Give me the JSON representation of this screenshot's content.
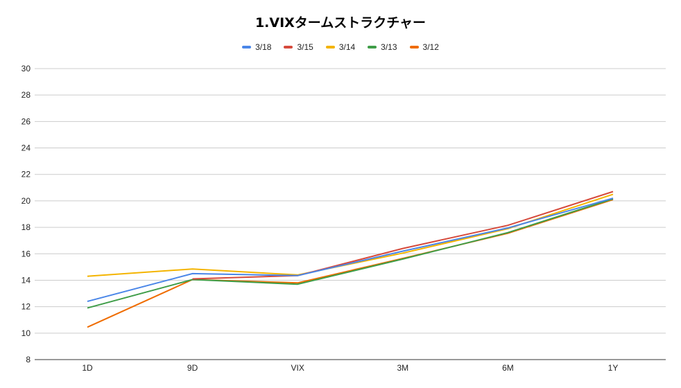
{
  "chart_data": {
    "type": "line",
    "title": "1.VIXタームストラクチャー",
    "categories": [
      "1D",
      "9D",
      "VIX",
      "3M",
      "6M",
      "1Y"
    ],
    "ylim": [
      8,
      30
    ],
    "yticks": [
      "8",
      "10",
      "12",
      "14",
      "16",
      "18",
      "20",
      "22",
      "24",
      "26",
      "28",
      "30"
    ],
    "grid": true,
    "legend_position": "top-center",
    "series": [
      {
        "name": "3/18",
        "color": "#4a86e8",
        "values": [
          12.4,
          14.5,
          14.35,
          16.2,
          17.95,
          20.2
        ]
      },
      {
        "name": "3/15",
        "color": "#d64a3c",
        "values": [
          null,
          14.1,
          14.35,
          16.4,
          18.15,
          20.7
        ]
      },
      {
        "name": "3/14",
        "color": "#f4b400",
        "values": [
          14.3,
          14.85,
          14.4,
          16.05,
          17.9,
          20.5
        ]
      },
      {
        "name": "3/13",
        "color": "#3f9d48",
        "values": [
          11.9,
          14.05,
          13.7,
          15.6,
          17.6,
          20.15
        ]
      },
      {
        "name": "3/12",
        "color": "#ef6c00",
        "values": [
          10.45,
          14.05,
          13.8,
          15.65,
          17.55,
          20.1
        ]
      }
    ]
  }
}
